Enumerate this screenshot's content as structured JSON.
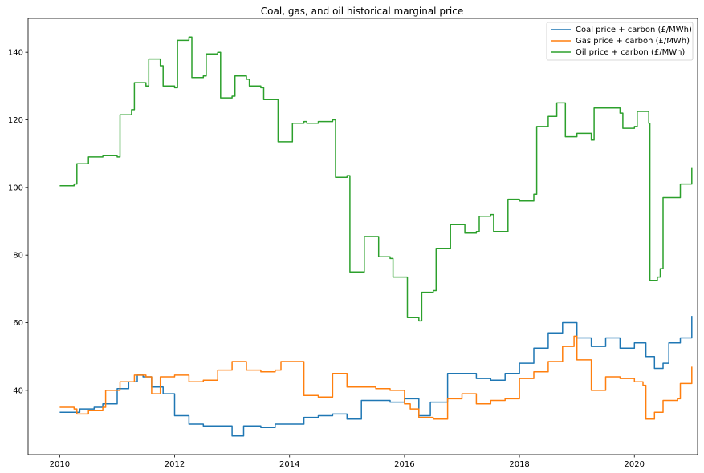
{
  "chart_data": {
    "type": "line",
    "title": "Coal, gas, and oil historical marginal price",
    "xlabel": "",
    "ylabel": "",
    "xlim": [
      2009.45,
      2021.1
    ],
    "ylim": [
      21,
      150
    ],
    "xticks": [
      2010,
      2012,
      2014,
      2016,
      2018,
      2020
    ],
    "yticks": [
      40,
      60,
      80,
      100,
      120,
      140
    ],
    "grid": false,
    "legend_position": "top-right",
    "series": [
      {
        "name": "Coal price + carbon (£/MWh)",
        "color": "#1f77b4",
        "points": [
          [
            2010.0,
            33.5
          ],
          [
            2010.3,
            33.5
          ],
          [
            2010.35,
            34.5
          ],
          [
            2010.6,
            35
          ],
          [
            2010.75,
            36
          ],
          [
            2011.0,
            40.5
          ],
          [
            2011.2,
            42.5
          ],
          [
            2011.35,
            44.5
          ],
          [
            2011.45,
            44
          ],
          [
            2011.6,
            41
          ],
          [
            2011.8,
            39
          ],
          [
            2012.0,
            32.5
          ],
          [
            2012.25,
            30
          ],
          [
            2012.5,
            29.5
          ],
          [
            2012.75,
            29.5
          ],
          [
            2013.0,
            26.5
          ],
          [
            2013.2,
            29.5
          ],
          [
            2013.5,
            29
          ],
          [
            2013.75,
            30
          ],
          [
            2014.0,
            30
          ],
          [
            2014.25,
            32
          ],
          [
            2014.5,
            32.5
          ],
          [
            2014.75,
            33
          ],
          [
            2015.0,
            31.5
          ],
          [
            2015.25,
            37
          ],
          [
            2015.5,
            37
          ],
          [
            2015.75,
            36.5
          ],
          [
            2016.0,
            37.5
          ],
          [
            2016.25,
            32.5
          ],
          [
            2016.45,
            36.5
          ],
          [
            2016.75,
            45
          ],
          [
            2017.0,
            45
          ],
          [
            2017.25,
            43.5
          ],
          [
            2017.5,
            43
          ],
          [
            2017.75,
            45
          ],
          [
            2018.0,
            48
          ],
          [
            2018.25,
            52.5
          ],
          [
            2018.5,
            57
          ],
          [
            2018.75,
            60
          ],
          [
            2018.95,
            60
          ],
          [
            2019.0,
            55.5
          ],
          [
            2019.25,
            53
          ],
          [
            2019.5,
            55.5
          ],
          [
            2019.75,
            52.5
          ],
          [
            2020.0,
            54
          ],
          [
            2020.2,
            50
          ],
          [
            2020.35,
            46.5
          ],
          [
            2020.5,
            48
          ],
          [
            2020.6,
            54
          ],
          [
            2020.8,
            55.5
          ],
          [
            2021.0,
            62
          ]
        ]
      },
      {
        "name": "Gas price + carbon (£/MWh)",
        "color": "#ff7f0e",
        "points": [
          [
            2010.0,
            35
          ],
          [
            2010.25,
            34.5
          ],
          [
            2010.3,
            33
          ],
          [
            2010.5,
            34
          ],
          [
            2010.75,
            35
          ],
          [
            2010.8,
            40
          ],
          [
            2011.0,
            40
          ],
          [
            2011.05,
            42.5
          ],
          [
            2011.3,
            44.5
          ],
          [
            2011.5,
            44
          ],
          [
            2011.6,
            39
          ],
          [
            2011.75,
            44
          ],
          [
            2012.0,
            44.5
          ],
          [
            2012.25,
            42.5
          ],
          [
            2012.5,
            43
          ],
          [
            2012.75,
            46
          ],
          [
            2013.0,
            48.5
          ],
          [
            2013.25,
            46
          ],
          [
            2013.5,
            45.5
          ],
          [
            2013.75,
            46
          ],
          [
            2013.85,
            48.5
          ],
          [
            2014.0,
            48.5
          ],
          [
            2014.25,
            38.5
          ],
          [
            2014.5,
            38
          ],
          [
            2014.75,
            45
          ],
          [
            2015.0,
            41
          ],
          [
            2015.25,
            41
          ],
          [
            2015.5,
            40.5
          ],
          [
            2015.75,
            40
          ],
          [
            2016.0,
            36
          ],
          [
            2016.1,
            34.5
          ],
          [
            2016.25,
            32
          ],
          [
            2016.5,
            31.5
          ],
          [
            2016.75,
            37.5
          ],
          [
            2017.0,
            39
          ],
          [
            2017.25,
            36
          ],
          [
            2017.5,
            37
          ],
          [
            2017.75,
            37.5
          ],
          [
            2018.0,
            43.5
          ],
          [
            2018.25,
            45.5
          ],
          [
            2018.5,
            48.5
          ],
          [
            2018.75,
            53
          ],
          [
            2018.95,
            56
          ],
          [
            2019.0,
            49
          ],
          [
            2019.25,
            40
          ],
          [
            2019.5,
            44
          ],
          [
            2019.75,
            43.5
          ],
          [
            2020.0,
            42.5
          ],
          [
            2020.15,
            41.5
          ],
          [
            2020.2,
            31.5
          ],
          [
            2020.35,
            33.5
          ],
          [
            2020.5,
            37
          ],
          [
            2020.75,
            37.5
          ],
          [
            2020.8,
            42
          ],
          [
            2021.0,
            47
          ]
        ]
      },
      {
        "name": "Oil price + carbon (£/MWh)",
        "color": "#2ca02c",
        "points": [
          [
            2010.0,
            100.5
          ],
          [
            2010.25,
            101
          ],
          [
            2010.3,
            107
          ],
          [
            2010.5,
            109
          ],
          [
            2010.75,
            109.5
          ],
          [
            2011.0,
            109
          ],
          [
            2011.05,
            121.5
          ],
          [
            2011.25,
            123
          ],
          [
            2011.3,
            131
          ],
          [
            2011.5,
            130
          ],
          [
            2011.55,
            138
          ],
          [
            2011.75,
            136
          ],
          [
            2011.8,
            130
          ],
          [
            2012.0,
            129.5
          ],
          [
            2012.05,
            143.5
          ],
          [
            2012.25,
            144.5
          ],
          [
            2012.3,
            132.5
          ],
          [
            2012.5,
            133
          ],
          [
            2012.55,
            139.5
          ],
          [
            2012.75,
            140
          ],
          [
            2012.8,
            126.5
          ],
          [
            2013.0,
            127
          ],
          [
            2013.05,
            133
          ],
          [
            2013.25,
            132
          ],
          [
            2013.3,
            130
          ],
          [
            2013.5,
            129.5
          ],
          [
            2013.55,
            126
          ],
          [
            2013.75,
            126
          ],
          [
            2013.8,
            113.5
          ],
          [
            2014.0,
            113.5
          ],
          [
            2014.05,
            119
          ],
          [
            2014.25,
            119.5
          ],
          [
            2014.3,
            119
          ],
          [
            2014.5,
            119.5
          ],
          [
            2014.75,
            120
          ],
          [
            2014.8,
            103
          ],
          [
            2015.0,
            103.5
          ],
          [
            2015.05,
            75
          ],
          [
            2015.25,
            75
          ],
          [
            2015.3,
            85.5
          ],
          [
            2015.5,
            85.5
          ],
          [
            2015.55,
            79.5
          ],
          [
            2015.75,
            79
          ],
          [
            2015.8,
            73.5
          ],
          [
            2016.0,
            73.5
          ],
          [
            2016.05,
            61.5
          ],
          [
            2016.25,
            60.5
          ],
          [
            2016.3,
            69
          ],
          [
            2016.5,
            69.5
          ],
          [
            2016.55,
            82
          ],
          [
            2016.75,
            82
          ],
          [
            2016.8,
            89
          ],
          [
            2017.0,
            89
          ],
          [
            2017.05,
            86.5
          ],
          [
            2017.25,
            87
          ],
          [
            2017.3,
            91.5
          ],
          [
            2017.5,
            92
          ],
          [
            2017.55,
            87
          ],
          [
            2017.75,
            87
          ],
          [
            2017.8,
            96.5
          ],
          [
            2018.0,
            96
          ],
          [
            2018.25,
            98
          ],
          [
            2018.3,
            118
          ],
          [
            2018.5,
            121
          ],
          [
            2018.65,
            125
          ],
          [
            2018.75,
            125
          ],
          [
            2018.8,
            115
          ],
          [
            2019.0,
            116
          ],
          [
            2019.25,
            114
          ],
          [
            2019.3,
            123.5
          ],
          [
            2019.5,
            123.5
          ],
          [
            2019.75,
            122
          ],
          [
            2019.8,
            117.5
          ],
          [
            2020.0,
            118
          ],
          [
            2020.05,
            122.5
          ],
          [
            2020.2,
            122.5
          ],
          [
            2020.25,
            119
          ],
          [
            2020.27,
            72.5
          ],
          [
            2020.4,
            73.5
          ],
          [
            2020.45,
            76
          ],
          [
            2020.5,
            97
          ],
          [
            2020.75,
            97
          ],
          [
            2020.8,
            101
          ],
          [
            2021.0,
            106
          ]
        ]
      }
    ]
  }
}
